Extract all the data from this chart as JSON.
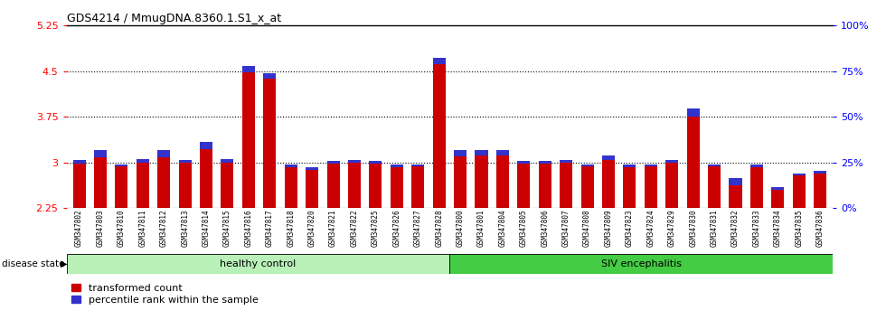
{
  "title": "GDS4214 / MmugDNA.8360.1.S1_x_at",
  "samples": [
    "GSM347802",
    "GSM347803",
    "GSM347810",
    "GSM347811",
    "GSM347812",
    "GSM347813",
    "GSM347814",
    "GSM347815",
    "GSM347816",
    "GSM347817",
    "GSM347818",
    "GSM347820",
    "GSM347821",
    "GSM347822",
    "GSM347825",
    "GSM347826",
    "GSM347827",
    "GSM347828",
    "GSM347800",
    "GSM347801",
    "GSM347804",
    "GSM347805",
    "GSM347806",
    "GSM347807",
    "GSM347808",
    "GSM347809",
    "GSM347823",
    "GSM347824",
    "GSM347829",
    "GSM347830",
    "GSM347831",
    "GSM347832",
    "GSM347833",
    "GSM347834",
    "GSM347835",
    "GSM347836"
  ],
  "red_values": [
    2.98,
    3.08,
    2.93,
    3.0,
    3.08,
    3.0,
    3.22,
    3.0,
    4.48,
    4.38,
    2.92,
    2.88,
    2.98,
    3.0,
    2.98,
    2.92,
    2.93,
    4.62,
    3.1,
    3.12,
    3.12,
    2.98,
    2.98,
    3.0,
    2.93,
    3.04,
    2.92,
    2.93,
    3.0,
    3.76,
    2.93,
    2.62,
    2.92,
    2.55,
    2.78,
    2.82
  ],
  "blue_values": [
    0.06,
    0.12,
    0.04,
    0.05,
    0.12,
    0.04,
    0.12,
    0.05,
    0.1,
    0.08,
    0.04,
    0.04,
    0.04,
    0.04,
    0.04,
    0.04,
    0.04,
    0.1,
    0.1,
    0.08,
    0.08,
    0.04,
    0.04,
    0.04,
    0.04,
    0.08,
    0.04,
    0.04,
    0.04,
    0.12,
    0.04,
    0.12,
    0.04,
    0.04,
    0.04,
    0.04
  ],
  "ylim_left": [
    2.25,
    5.25
  ],
  "ylim_right": [
    0,
    100
  ],
  "yticks_left": [
    2.25,
    3.0,
    3.75,
    4.5,
    5.25
  ],
  "yticks_right": [
    0,
    25,
    50,
    75,
    100
  ],
  "ytick_labels_left": [
    "2.25",
    "3",
    "3.75",
    "4.5",
    "5.25"
  ],
  "ytick_labels_right": [
    "0%",
    "25%",
    "50%",
    "75%",
    "100%"
  ],
  "healthy_count": 18,
  "siv_count": 18,
  "healthy_label": "healthy control",
  "siv_label": "SIV encephalitis",
  "disease_label": "disease state",
  "legend1": "transformed count",
  "legend2": "percentile rank within the sample",
  "bar_color_red": "#cc0000",
  "bar_color_blue": "#3333cc",
  "plot_bg": "#ffffff",
  "healthy_color": "#b8f0b8",
  "siv_color": "#44cc44",
  "base_value": 2.25,
  "bar_width": 0.6
}
